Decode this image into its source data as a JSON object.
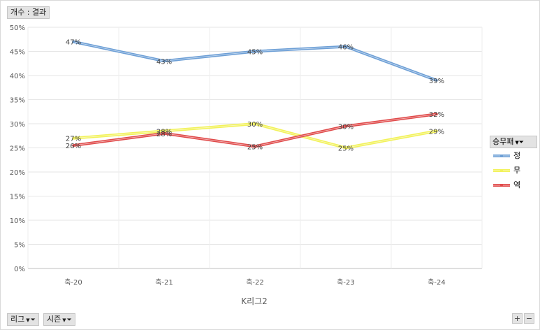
{
  "field_buttons": {
    "values_label": "개수 : 결과",
    "filter1_label": "리그",
    "filter2_label": "시즌",
    "legend_label": "승무패"
  },
  "colors": {
    "정": "#6d9fd6",
    "무": "#f2f25a",
    "역": "#e04a4a"
  },
  "chart_data": {
    "type": "line",
    "categories": [
      "축-20",
      "축-21",
      "축-22",
      "축-23",
      "축-24"
    ],
    "xlabel": "K리그2",
    "ylabel": "",
    "ylim": [
      0,
      50
    ],
    "yticks": [
      "0%",
      "5%",
      "10%",
      "15%",
      "20%",
      "25%",
      "30%",
      "35%",
      "40%",
      "45%",
      "50%"
    ],
    "grid": true,
    "legend_position": "right",
    "series": [
      {
        "name": "정",
        "values": [
          47,
          43,
          45,
          46,
          39
        ],
        "labels": [
          "47%",
          "43%",
          "45%",
          "46%",
          "39%"
        ]
      },
      {
        "name": "무",
        "values": [
          27,
          28.5,
          30,
          25,
          28.5
        ],
        "labels": [
          "27%",
          "28%",
          "30%",
          "25%",
          "29%"
        ]
      },
      {
        "name": "역",
        "values": [
          25.5,
          28,
          25.3,
          29.5,
          32
        ],
        "labels": [
          "26%",
          "28%",
          "25%",
          "30%",
          "32%"
        ]
      }
    ]
  }
}
